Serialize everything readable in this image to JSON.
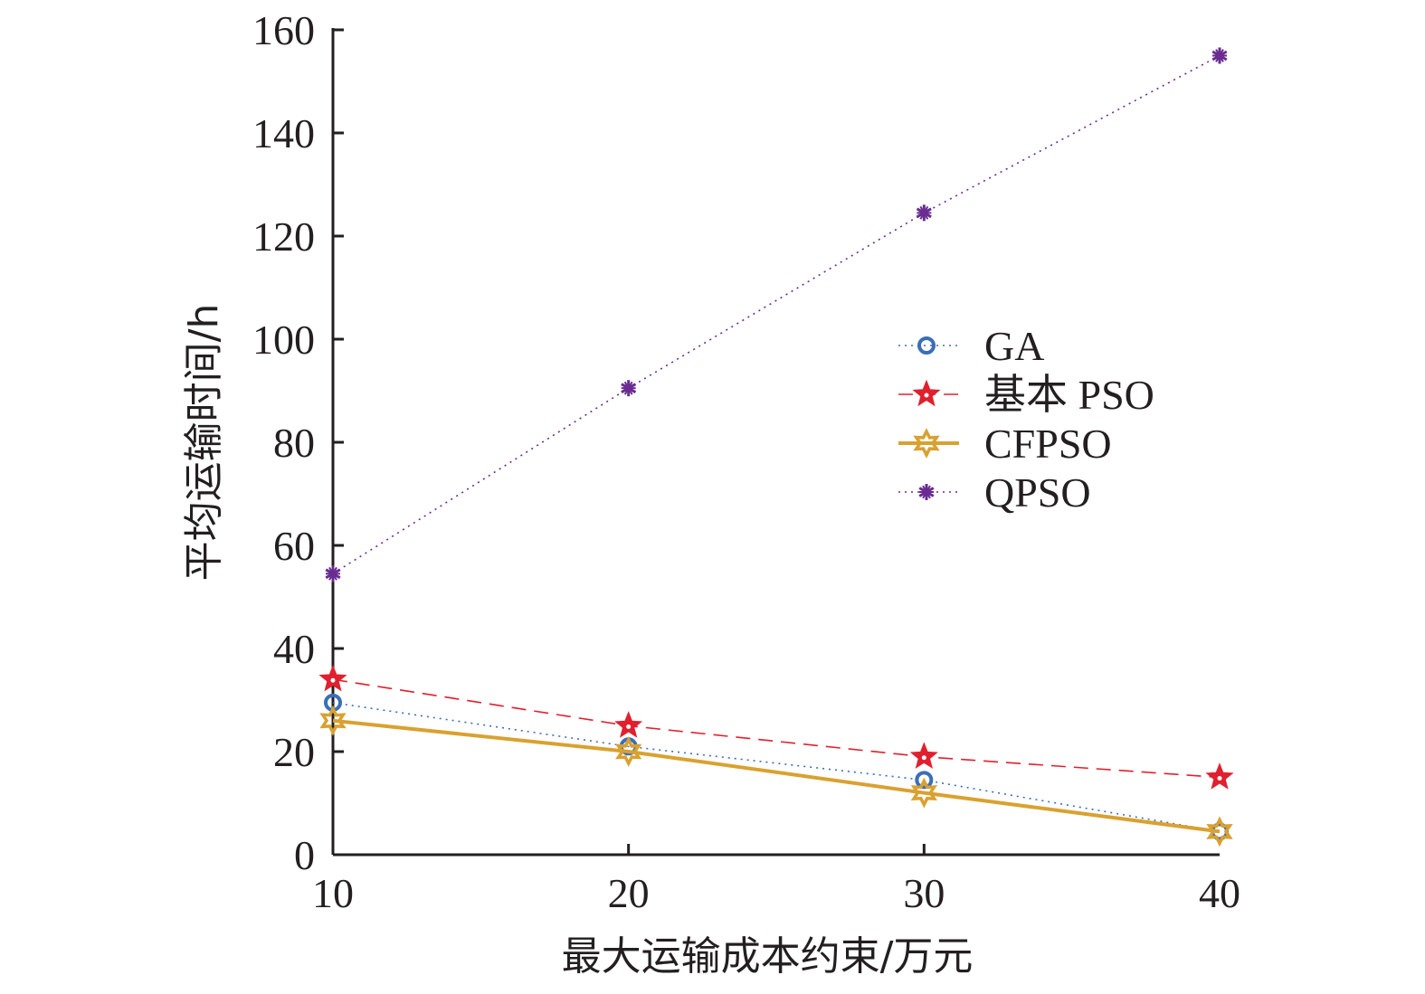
{
  "chart_data": {
    "type": "line",
    "title": "",
    "xlabel": "最大运输成本约束/万元",
    "ylabel": "平均运输时间/h",
    "x": [
      10,
      20,
      30,
      40
    ],
    "xlim": [
      10,
      40
    ],
    "ylim": [
      0,
      160
    ],
    "xticks": [
      "10",
      "20",
      "30",
      "40"
    ],
    "yticks": [
      "0",
      "20",
      "40",
      "60",
      "80",
      "100",
      "120",
      "140",
      "160"
    ],
    "grid": false,
    "legend_position": "right",
    "series": [
      {
        "name": "GA",
        "values": [
          29.5,
          21,
          14.5,
          4.5
        ],
        "color": "#3a6fb7",
        "line": "dotted",
        "marker": "circle"
      },
      {
        "name": "基本 PSO",
        "values": [
          34,
          25,
          19,
          15
        ],
        "color": "#e0202e",
        "line": "dashed",
        "marker": "star"
      },
      {
        "name": "CFPSO",
        "values": [
          26,
          20,
          12,
          4.5
        ],
        "color": "#d9a130",
        "line": "solid",
        "marker": "hexagram"
      },
      {
        "name": "QPSO",
        "values": [
          54.5,
          90.5,
          124.5,
          155
        ],
        "color": "#6a2c91",
        "line": "dotted",
        "marker": "asterisk"
      }
    ]
  }
}
